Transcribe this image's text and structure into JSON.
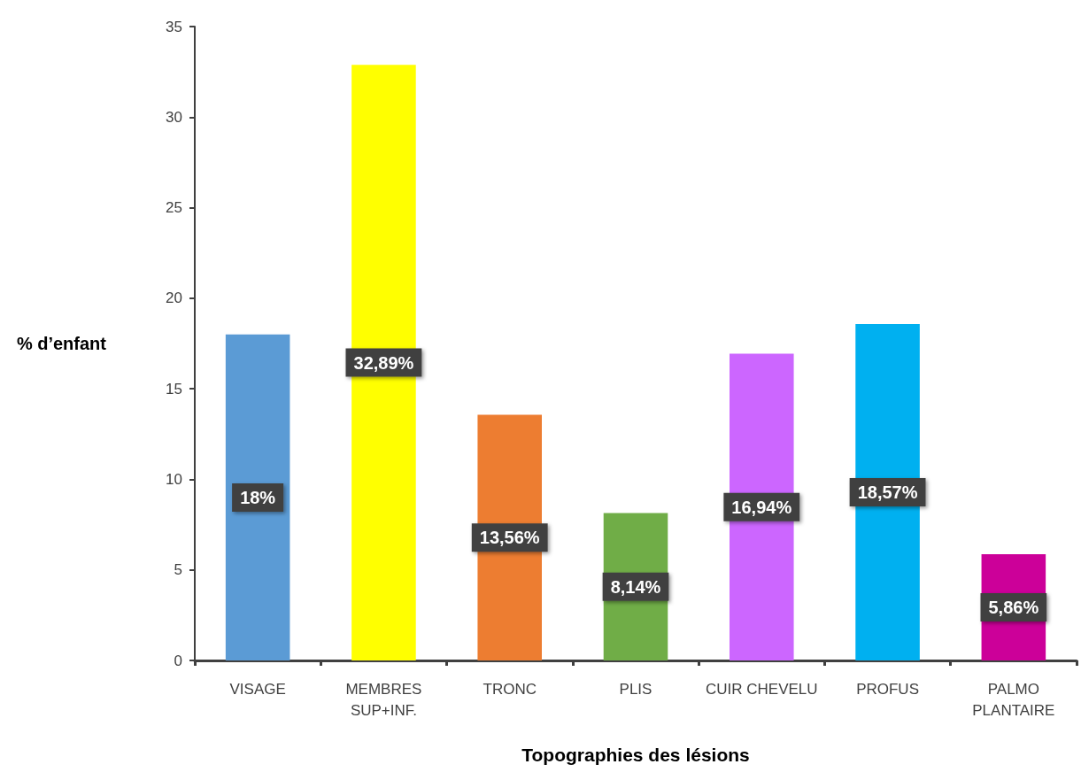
{
  "chart_data": {
    "type": "bar",
    "xlabel": "Topographies des lésions",
    "ylabel": "% d’enfant",
    "categories": [
      "VISAGE",
      "MEMBRES\nSUP+INF.",
      "TRONC",
      "PLIS",
      "CUIR CHEVELU",
      "PROFUS",
      "PALMO\nPLANTAIRE"
    ],
    "values": [
      18,
      32.89,
      13.56,
      8.14,
      16.94,
      18.57,
      5.86
    ],
    "value_labels": [
      "18%",
      "32,89%",
      "13,56%",
      "8,14%",
      "16,94%",
      "18,57%",
      "5,86%"
    ],
    "colors": [
      "#5b9bd5",
      "#ffff00",
      "#ed7d31",
      "#70ad47",
      "#cc66ff",
      "#00b0f0",
      "#cc0099"
    ],
    "ylim": [
      0,
      35
    ],
    "yticks": [
      0,
      5,
      10,
      15,
      20,
      25,
      30,
      35
    ],
    "grid": false
  }
}
